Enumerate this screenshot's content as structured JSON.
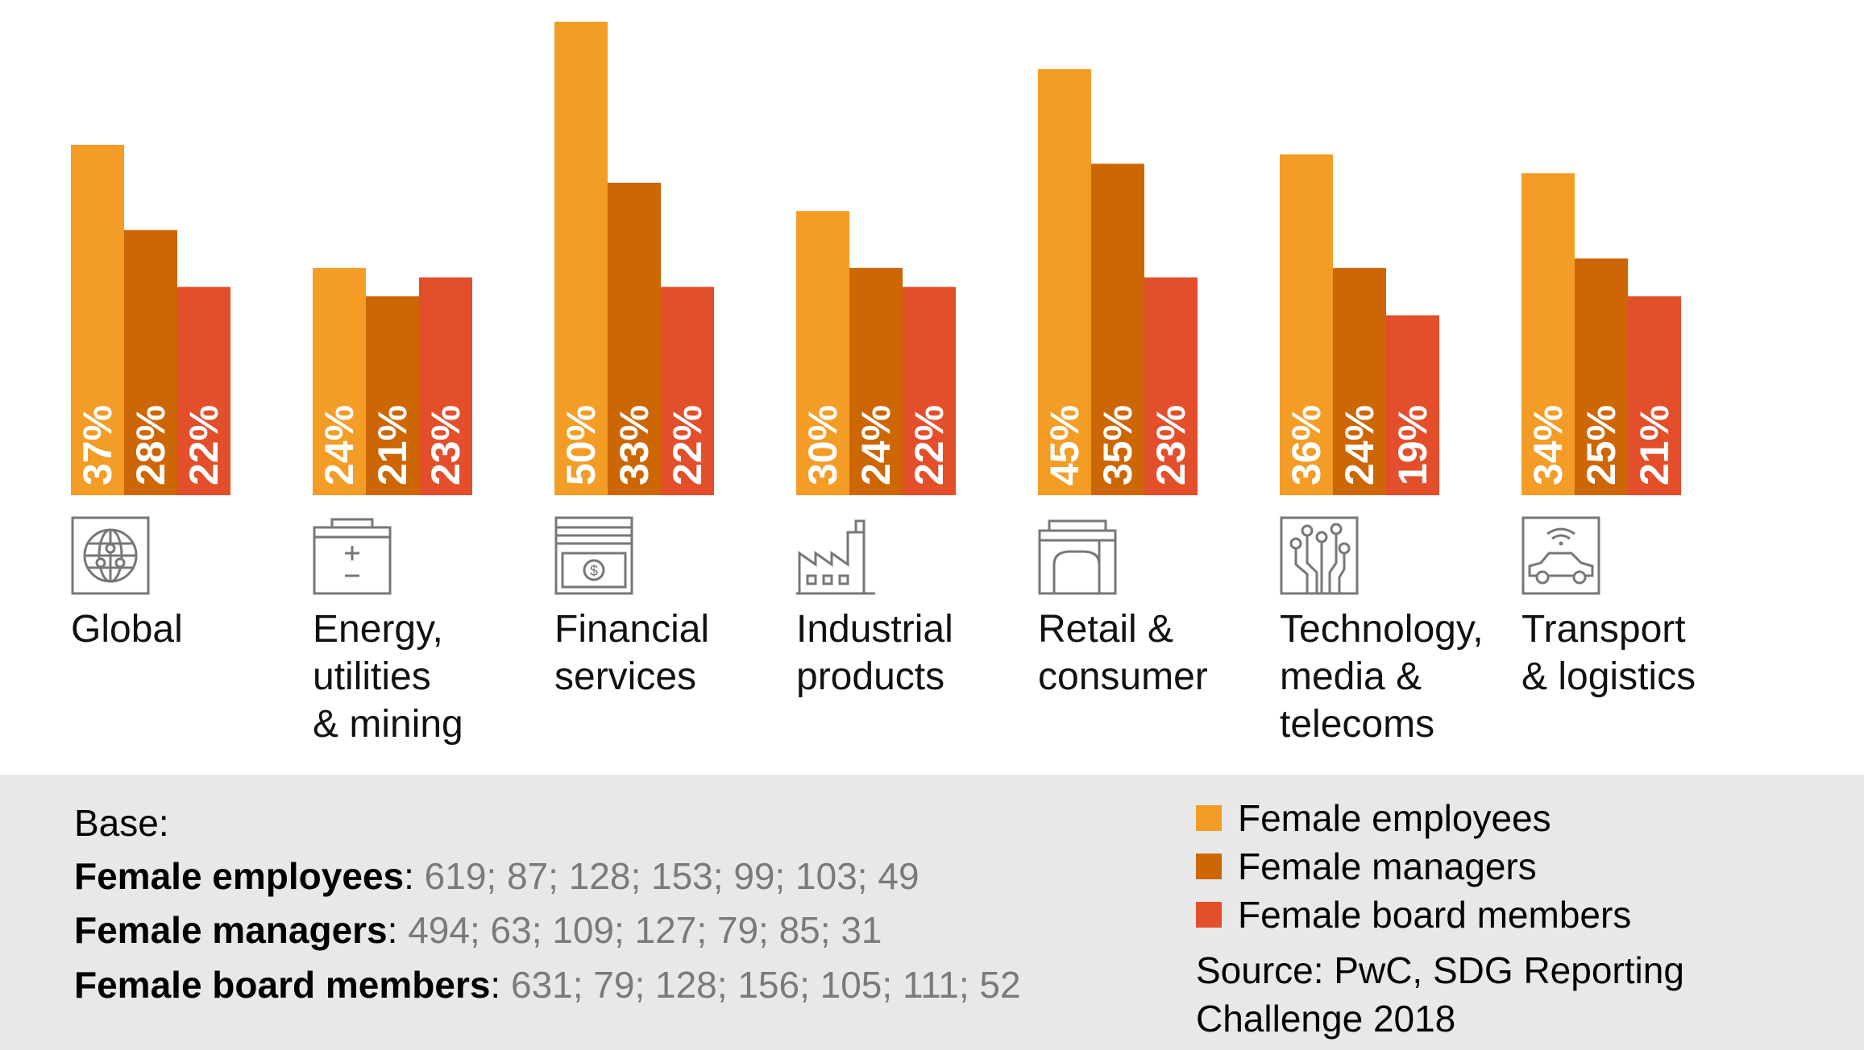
{
  "chart_data": {
    "type": "bar",
    "categories": [
      "Global",
      "Energy,\nutilities\n& mining",
      "Financial\nservices",
      "Industrial\nproducts",
      "Retail &\nconsumer",
      "Technology,\nmedia &\ntelecoms",
      "Transport\n& logistics"
    ],
    "category_icons": [
      "globe-icon",
      "battery-icon",
      "banknote-icon",
      "factory-icon",
      "store-icon",
      "circuit-icon",
      "connected-car-icon"
    ],
    "series": [
      {
        "name": "Female employees",
        "values": [
          37,
          24,
          50,
          30,
          45,
          36,
          34
        ],
        "labels": [
          "37%",
          "24%",
          "50%",
          "30%",
          "45%",
          "36%",
          "34%"
        ],
        "color": "#F39C26"
      },
      {
        "name": "Female managers",
        "values": [
          28,
          21,
          33,
          24,
          35,
          24,
          25
        ],
        "labels": [
          "28%",
          "21%",
          "33%",
          "24%",
          "35%",
          "24%",
          "25%"
        ],
        "color": "#CD6605"
      },
      {
        "name": "Female board members",
        "values": [
          22,
          23,
          22,
          22,
          23,
          19,
          21
        ],
        "labels": [
          "22%",
          "23%",
          "22%",
          "22%",
          "23%",
          "19%",
          "21%"
        ],
        "color": "#E34E2B"
      }
    ],
    "ylim": [
      0,
      50
    ],
    "title": "",
    "xlabel": "",
    "ylabel": "",
    "grid": false
  },
  "base": {
    "title": "Base:",
    "rows": [
      {
        "label": "Female employees",
        "values": "619; 87; 128; 153; 99; 103; 49"
      },
      {
        "label": "Female managers",
        "values": "494; 63; 109; 127; 79; 85; 31"
      },
      {
        "label": "Female board members",
        "values": "631; 79; 128; 156; 105; 111; 52"
      }
    ]
  },
  "legend": [
    {
      "label": "Female employees",
      "color": "#F39C26"
    },
    {
      "label": "Female managers",
      "color": "#CD6605"
    },
    {
      "label": "Female board members",
      "color": "#E34E2B"
    }
  ],
  "source": "Source: PwC, SDG Reporting\nChallenge 2018",
  "colors": {
    "footer_bg": "#e8e8e8",
    "icon_stroke": "#777777",
    "values_gray": "#7a7a7a"
  }
}
